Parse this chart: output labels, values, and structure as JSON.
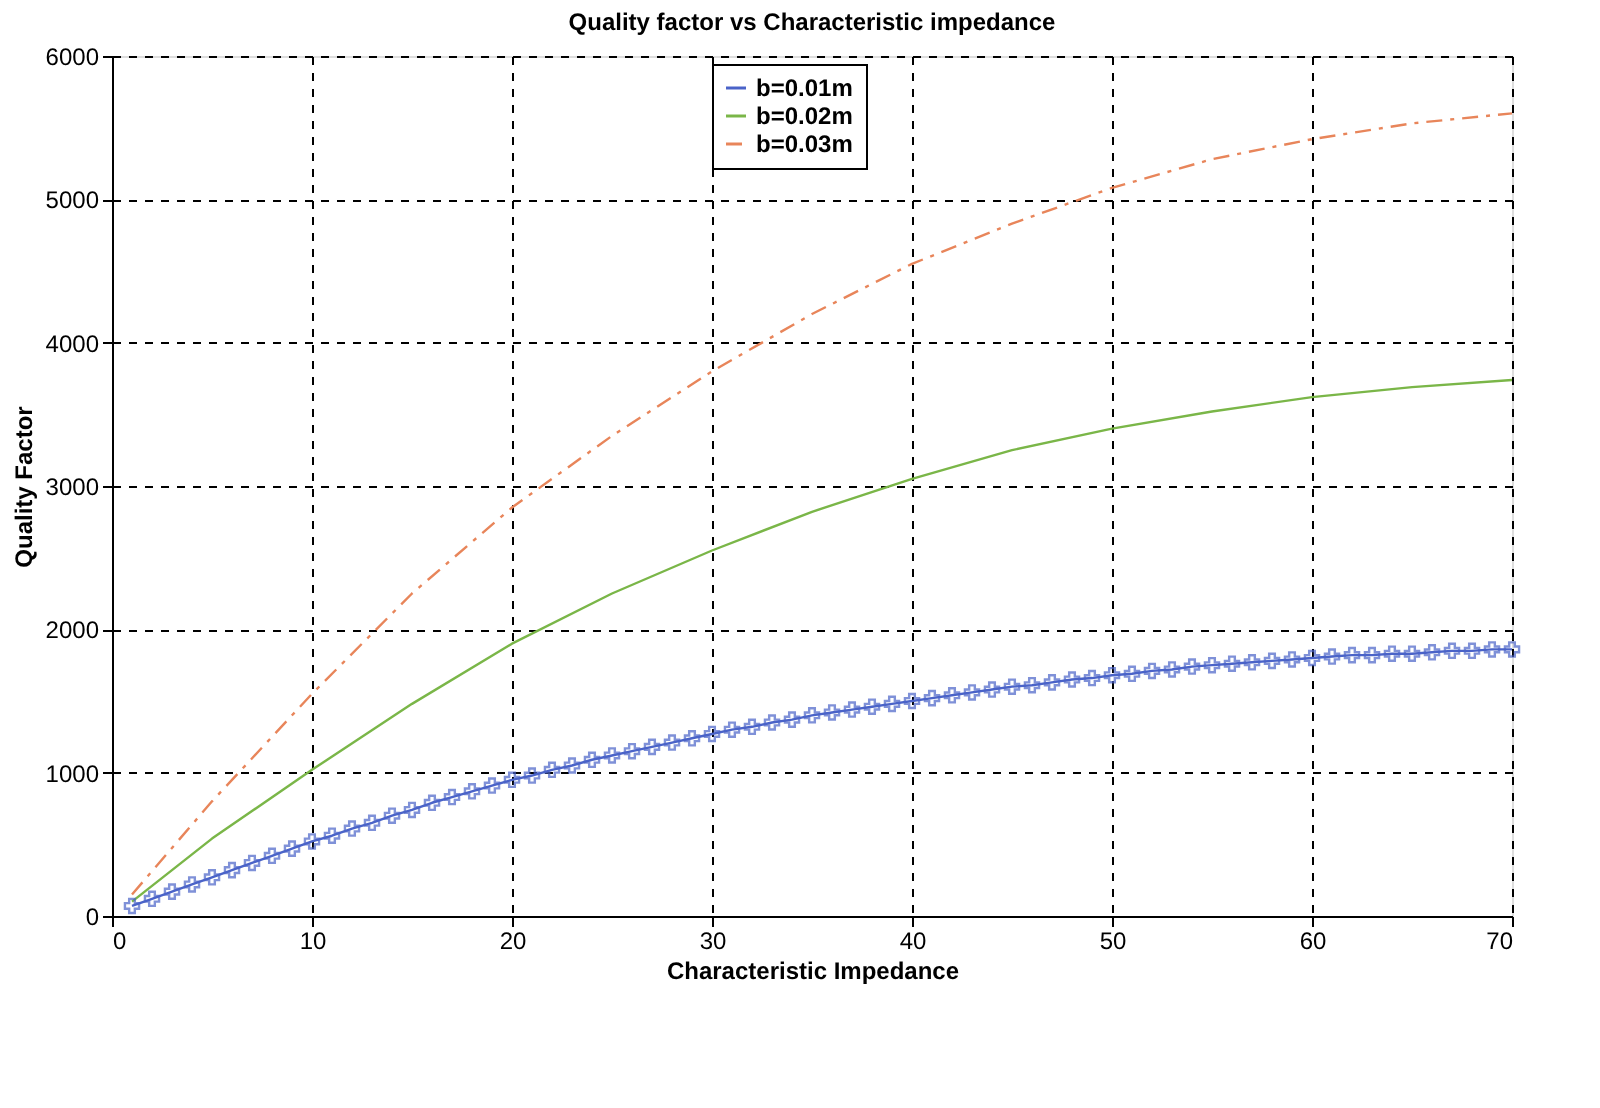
{
  "chart_data": {
    "type": "line",
    "title": "Quality factor vs Characteristic impedance",
    "xlabel": "Characteristic Impedance",
    "ylabel": "Quality Factor",
    "xlim": [
      0,
      70
    ],
    "xticks": [
      0,
      10,
      20,
      30,
      40,
      50,
      60,
      70
    ],
    "ylim": [
      0,
      6000
    ],
    "yticks": [
      0,
      1000,
      2000,
      3000,
      4000,
      5000,
      6000
    ],
    "grid": true,
    "legend": "top",
    "series": [
      {
        "name": "b=0.01m",
        "color": "#4a63c8",
        "marker": "cross",
        "line_style": "solid",
        "x": [
          1,
          2,
          3,
          4,
          5,
          6,
          7,
          8,
          9,
          10,
          11,
          12,
          13,
          14,
          15,
          16,
          17,
          18,
          19,
          20,
          21,
          22,
          23,
          24,
          25,
          26,
          27,
          28,
          29,
          30,
          31,
          32,
          33,
          34,
          35,
          36,
          37,
          38,
          39,
          40,
          41,
          42,
          43,
          44,
          45,
          46,
          47,
          48,
          49,
          50,
          51,
          52,
          53,
          54,
          55,
          56,
          57,
          58,
          59,
          60,
          61,
          62,
          63,
          64,
          65,
          66,
          67,
          68,
          69,
          70
        ],
        "values": [
          70,
          120,
          170,
          220,
          270,
          320,
          370,
          420,
          470,
          520,
          560,
          610,
          650,
          700,
          740,
          790,
          830,
          870,
          910,
          950,
          980,
          1020,
          1050,
          1090,
          1120,
          1150,
          1180,
          1210,
          1240,
          1270,
          1300,
          1320,
          1350,
          1370,
          1400,
          1420,
          1440,
          1460,
          1480,
          1500,
          1520,
          1540,
          1560,
          1580,
          1600,
          1610,
          1630,
          1650,
          1660,
          1680,
          1690,
          1710,
          1720,
          1740,
          1750,
          1760,
          1770,
          1780,
          1790,
          1800,
          1810,
          1820,
          1820,
          1830,
          1830,
          1840,
          1850,
          1850,
          1860,
          1860
        ]
      },
      {
        "name": "b=0.02m",
        "color": "#7ab648",
        "marker": "none",
        "line_style": "solid",
        "x": [
          1,
          5,
          10,
          15,
          20,
          25,
          30,
          35,
          40,
          45,
          50,
          55,
          60,
          65,
          70
        ],
        "values": [
          100,
          540,
          1020,
          1480,
          1900,
          2250,
          2550,
          2820,
          3050,
          3250,
          3400,
          3520,
          3620,
          3690,
          3740
        ]
      },
      {
        "name": "b=0.03m",
        "color": "#e8855a",
        "marker": "none",
        "line_style": "dashdot",
        "x": [
          1,
          5,
          10,
          15,
          20,
          25,
          30,
          35,
          40,
          45,
          50,
          55,
          60,
          65,
          70
        ],
        "values": [
          150,
          800,
          1550,
          2250,
          2850,
          3350,
          3800,
          4200,
          4550,
          4830,
          5080,
          5280,
          5420,
          5530,
          5600
        ]
      }
    ]
  }
}
